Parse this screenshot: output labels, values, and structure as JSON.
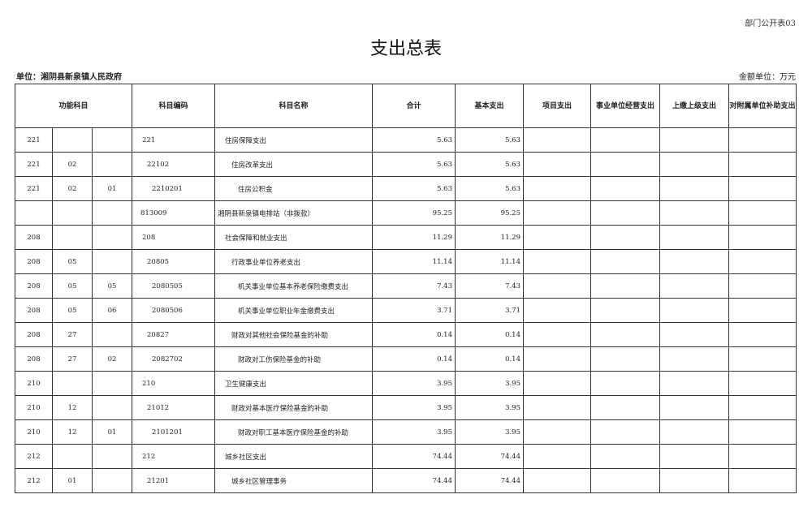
{
  "form_number": "部门公开表03",
  "title": "支出总表",
  "unit_label": "单位：湘阴县新泉镇人民政府",
  "money_unit": "金额单位：万元",
  "headers": [
    "功能科目",
    "科目编码",
    "科目名称",
    "合计",
    "基本支出",
    "项目支出",
    "事业单位经营支出",
    "上缴上级支出",
    "对附属单位补助支出"
  ],
  "rows": [
    {
      "f1": "221",
      "f2": "",
      "f3": "",
      "code": "221",
      "name": "住房保障支出",
      "level": 0,
      "total": "5.63",
      "basic": "5.63"
    },
    {
      "f1": "221",
      "f2": "02",
      "f3": "",
      "code": "22102",
      "name": "住房改革支出",
      "level": 1,
      "total": "5.63",
      "basic": "5.63"
    },
    {
      "f1": "221",
      "f2": "02",
      "f3": "01",
      "code": "2210201",
      "name": "住房公积金",
      "level": 2,
      "total": "5.63",
      "basic": "5.63"
    },
    {
      "f1": "",
      "f2": "",
      "f3": "",
      "code": "813009",
      "name": "湘阴县新泉镇电排站（非拨款）",
      "level": -1,
      "total": "95.25",
      "basic": "95.25"
    },
    {
      "f1": "208",
      "f2": "",
      "f3": "",
      "code": "208",
      "name": "社会保障和就业支出",
      "level": 0,
      "total": "11.29",
      "basic": "11.29"
    },
    {
      "f1": "208",
      "f2": "05",
      "f3": "",
      "code": "20805",
      "name": "行政事业单位养老支出",
      "level": 1,
      "total": "11.14",
      "basic": "11.14"
    },
    {
      "f1": "208",
      "f2": "05",
      "f3": "05",
      "code": "2080505",
      "name": "机关事业单位基本养老保险缴费支出",
      "level": 2,
      "total": "7.43",
      "basic": "7.43"
    },
    {
      "f1": "208",
      "f2": "05",
      "f3": "06",
      "code": "2080506",
      "name": "机关事业单位职业年金缴费支出",
      "level": 2,
      "total": "3.71",
      "basic": "3.71"
    },
    {
      "f1": "208",
      "f2": "27",
      "f3": "",
      "code": "20827",
      "name": "财政对其他社会保险基金的补助",
      "level": 1,
      "total": "0.14",
      "basic": "0.14"
    },
    {
      "f1": "208",
      "f2": "27",
      "f3": "02",
      "code": "2082702",
      "name": "财政对工伤保险基金的补助",
      "level": 2,
      "total": "0.14",
      "basic": "0.14"
    },
    {
      "f1": "210",
      "f2": "",
      "f3": "",
      "code": "210",
      "name": "卫生健康支出",
      "level": 0,
      "total": "3.95",
      "basic": "3.95"
    },
    {
      "f1": "210",
      "f2": "12",
      "f3": "",
      "code": "21012",
      "name": "财政对基本医疗保险基金的补助",
      "level": 1,
      "total": "3.95",
      "basic": "3.95"
    },
    {
      "f1": "210",
      "f2": "12",
      "f3": "01",
      "code": "2101201",
      "name": "财政对职工基本医疗保险基金的补助",
      "level": 2,
      "total": "3.95",
      "basic": "3.95"
    },
    {
      "f1": "212",
      "f2": "",
      "f3": "",
      "code": "212",
      "name": "城乡社区支出",
      "level": 0,
      "total": "74.44",
      "basic": "74.44"
    },
    {
      "f1": "212",
      "f2": "01",
      "f3": "",
      "code": "21201",
      "name": "城乡社区管理事务",
      "level": 1,
      "total": "74.44",
      "basic": "74.44"
    }
  ]
}
